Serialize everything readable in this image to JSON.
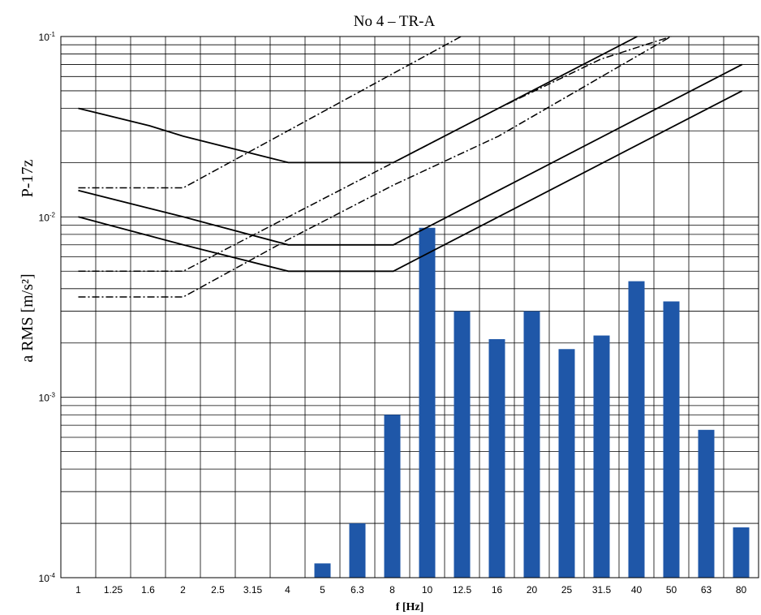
{
  "chart_data": {
    "type": "bar",
    "title": "No 4 – TR-A",
    "ylabel": "a RMS [m/s²]",
    "ylabel_tag": "P-17z",
    "xlabel": "f [Hz]",
    "y_scale": "log",
    "ylim": [
      0.0001,
      0.1
    ],
    "y_ticks": [
      {
        "value": 0.0001,
        "base": "10",
        "exp": "-4"
      },
      {
        "value": 0.001,
        "base": "10",
        "exp": "-3"
      },
      {
        "value": 0.01,
        "base": "10",
        "exp": "-2"
      },
      {
        "value": 0.1,
        "base": "10",
        "exp": "-1"
      }
    ],
    "grid": true,
    "categories": [
      "1",
      "1.25",
      "1.6",
      "2",
      "2.5",
      "3.15",
      "4",
      "5",
      "6.3",
      "8",
      "10",
      "12.5",
      "16",
      "20",
      "25",
      "31.5",
      "40",
      "50",
      "63",
      "80"
    ],
    "series": [
      {
        "values": [
          0.0001,
          0.0001,
          0.0001,
          0.0001,
          0.0001,
          0.0001,
          0.0001,
          0.00012,
          0.0002,
          0.0008,
          0.0087,
          0.003,
          0.0021,
          0.003,
          0.00185,
          0.0022,
          0.0044,
          0.0034,
          0.00066,
          0.00019
        ],
        "color": "#1f57a8"
      }
    ],
    "reference_curves": [
      {
        "style": "solid",
        "points": [
          [
            1,
            0.04
          ],
          [
            1.6,
            0.032
          ],
          [
            2,
            0.028
          ],
          [
            4,
            0.02
          ],
          [
            8,
            0.02
          ],
          [
            16,
            0.04
          ],
          [
            40,
            0.1
          ]
        ]
      },
      {
        "style": "solid",
        "points": [
          [
            1,
            0.014
          ],
          [
            2,
            0.01
          ],
          [
            4,
            0.007
          ],
          [
            8,
            0.007
          ],
          [
            16,
            0.014
          ],
          [
            80,
            0.07
          ]
        ]
      },
      {
        "style": "solid",
        "points": [
          [
            1,
            0.01
          ],
          [
            2,
            0.007
          ],
          [
            4,
            0.005
          ],
          [
            8,
            0.005
          ],
          [
            16,
            0.01
          ],
          [
            80,
            0.05
          ]
        ]
      },
      {
        "style": "dashdot",
        "points": [
          [
            1,
            0.0145
          ],
          [
            2,
            0.0145
          ],
          [
            12.5,
            0.1
          ]
        ]
      },
      {
        "style": "dashdot",
        "points": [
          [
            1,
            0.005
          ],
          [
            2,
            0.005
          ],
          [
            4,
            0.01
          ],
          [
            8,
            0.02
          ],
          [
            16,
            0.04
          ],
          [
            31.5,
            0.075
          ],
          [
            50,
            0.1
          ]
        ]
      },
      {
        "style": "dashdot",
        "points": [
          [
            1,
            0.0036
          ],
          [
            2,
            0.0036
          ],
          [
            4,
            0.0075
          ],
          [
            8,
            0.015
          ],
          [
            16,
            0.028
          ],
          [
            50,
            0.1
          ]
        ]
      }
    ]
  }
}
